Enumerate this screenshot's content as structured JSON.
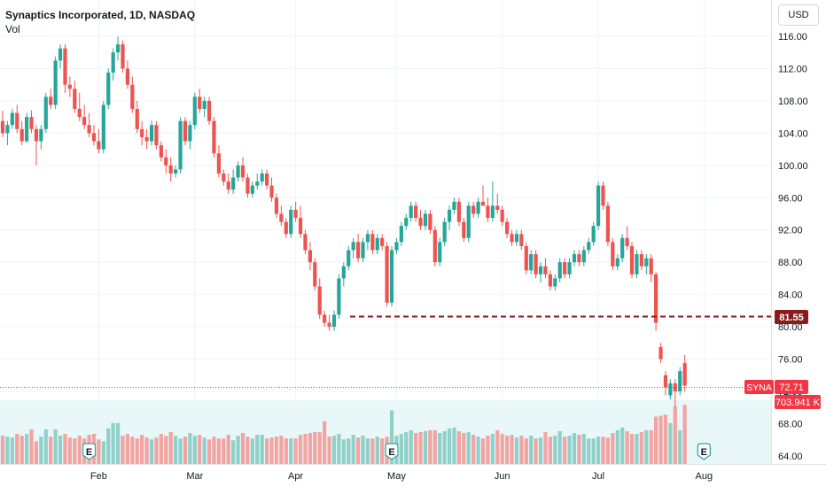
{
  "header": {
    "symbol_title": "Synaptics Incorporated, 1D, NASDAQ",
    "volume_label": "Vol",
    "currency_button": "USD"
  },
  "colors": {
    "up": "#26a69a",
    "down": "#ef5350",
    "up_volume": "#8fd0c9",
    "down_volume": "#f3a3a2",
    "level_line": "#8b1a1a",
    "last_price": "#f23645",
    "volume_band": "#e8f7f7"
  },
  "chart_data": {
    "type": "candlestick",
    "title": "Synaptics Incorporated, 1D, NASDAQ",
    "y_axis": {
      "ticks": [
        "116.00",
        "112.00",
        "108.00",
        "104.00",
        "100.00",
        "96.00",
        "92.00",
        "88.00",
        "84.00",
        "80.00",
        "76.00",
        "72.00",
        "68.00",
        "64.00"
      ],
      "range": [
        63.0,
        120.5
      ],
      "position": "right"
    },
    "x_axis": {
      "ticks": [
        {
          "label": "Feb",
          "day": 20
        },
        {
          "label": "Mar",
          "day": 40
        },
        {
          "label": "Apr",
          "day": 61
        },
        {
          "label": "May",
          "day": 82
        },
        {
          "label": "Jun",
          "day": 104
        },
        {
          "label": "Jul",
          "day": 124
        },
        {
          "label": "Aug",
          "day": 146
        }
      ]
    },
    "candles": [
      [
        105.5,
        106.8,
        103.5,
        104.0
      ],
      [
        104.0,
        105.5,
        102.5,
        105.0
      ],
      [
        105.0,
        107.0,
        104.5,
        106.5
      ],
      [
        106.5,
        107.5,
        104.0,
        104.5
      ],
      [
        104.5,
        105.5,
        102.5,
        103.0
      ],
      [
        103.0,
        106.5,
        102.8,
        106.0
      ],
      [
        106.0,
        106.8,
        104.0,
        104.5
      ],
      [
        104.5,
        105.0,
        100.0,
        103.0
      ],
      [
        103.0,
        105.0,
        102.0,
        104.5
      ],
      [
        104.5,
        109.0,
        104.0,
        108.5
      ],
      [
        108.5,
        109.5,
        107.0,
        107.5
      ],
      [
        107.5,
        113.5,
        107.0,
        113.0
      ],
      [
        113.0,
        115.0,
        112.0,
        114.5
      ],
      [
        114.5,
        115.0,
        109.0,
        110.0
      ],
      [
        110.0,
        111.0,
        108.5,
        109.5
      ],
      [
        109.5,
        110.5,
        106.5,
        107.0
      ],
      [
        107.0,
        109.0,
        105.5,
        106.0
      ],
      [
        106.0,
        107.5,
        104.5,
        105.0
      ],
      [
        105.0,
        106.5,
        103.5,
        104.0
      ],
      [
        104.0,
        105.0,
        102.5,
        103.0
      ],
      [
        103.0,
        104.5,
        101.5,
        102.0
      ],
      [
        102.0,
        108.0,
        101.5,
        107.5
      ],
      [
        107.5,
        112.0,
        107.0,
        111.5
      ],
      [
        111.5,
        114.5,
        110.5,
        114.0
      ],
      [
        114.0,
        116.0,
        113.0,
        115.0
      ],
      [
        115.0,
        115.5,
        111.5,
        112.0
      ],
      [
        112.0,
        113.0,
        109.5,
        110.0
      ],
      [
        110.0,
        111.0,
        106.5,
        107.0
      ],
      [
        107.0,
        108.0,
        104.0,
        104.5
      ],
      [
        104.5,
        105.5,
        102.5,
        103.5
      ],
      [
        103.5,
        104.5,
        102.0,
        103.0
      ],
      [
        103.0,
        105.5,
        102.5,
        105.0
      ],
      [
        105.0,
        105.5,
        102.0,
        102.5
      ],
      [
        102.5,
        103.0,
        100.5,
        101.0
      ],
      [
        101.0,
        102.0,
        99.0,
        100.0
      ],
      [
        100.0,
        101.0,
        98.0,
        99.0
      ],
      [
        99.0,
        100.0,
        98.5,
        99.5
      ],
      [
        99.5,
        106.0,
        99.0,
        105.5
      ],
      [
        105.5,
        106.0,
        102.5,
        103.0
      ],
      [
        103.0,
        105.5,
        102.0,
        105.0
      ],
      [
        105.0,
        109.0,
        104.5,
        108.5
      ],
      [
        108.5,
        109.5,
        106.5,
        107.0
      ],
      [
        107.0,
        108.5,
        106.0,
        108.0
      ],
      [
        108.0,
        108.5,
        105.0,
        105.5
      ],
      [
        105.5,
        106.0,
        101.0,
        101.5
      ],
      [
        101.5,
        102.5,
        98.5,
        99.0
      ],
      [
        99.0,
        99.5,
        97.5,
        98.0
      ],
      [
        98.0,
        99.0,
        96.5,
        97.0
      ],
      [
        97.0,
        99.5,
        96.5,
        98.5
      ],
      [
        98.5,
        100.5,
        98.0,
        100.0
      ],
      [
        100.0,
        101.0,
        98.0,
        98.5
      ],
      [
        98.5,
        99.0,
        96.0,
        96.5
      ],
      [
        96.5,
        98.0,
        96.0,
        97.5
      ],
      [
        97.5,
        99.0,
        97.0,
        98.0
      ],
      [
        98.0,
        99.5,
        97.5,
        99.0
      ],
      [
        99.0,
        99.5,
        97.0,
        97.5
      ],
      [
        97.5,
        98.5,
        95.5,
        96.0
      ],
      [
        96.0,
        96.5,
        93.5,
        94.0
      ],
      [
        94.0,
        95.0,
        92.5,
        93.0
      ],
      [
        93.0,
        93.5,
        91.0,
        91.5
      ],
      [
        91.5,
        95.0,
        91.0,
        94.5
      ],
      [
        94.5,
        95.5,
        93.0,
        93.5
      ],
      [
        93.5,
        95.0,
        91.0,
        91.5
      ],
      [
        91.5,
        92.0,
        89.0,
        89.5
      ],
      [
        89.5,
        90.5,
        87.0,
        88.0
      ],
      [
        88.0,
        88.5,
        84.5,
        85.0
      ],
      [
        85.0,
        86.0,
        81.0,
        81.5
      ],
      [
        81.5,
        82.0,
        80.0,
        80.5
      ],
      [
        80.5,
        81.5,
        79.5,
        80.0
      ],
      [
        80.0,
        82.0,
        79.5,
        81.5
      ],
      [
        81.5,
        86.5,
        81.0,
        86.0
      ],
      [
        86.0,
        88.0,
        85.0,
        87.5
      ],
      [
        87.5,
        90.0,
        87.0,
        89.5
      ],
      [
        89.5,
        91.0,
        88.5,
        90.5
      ],
      [
        90.5,
        91.5,
        88.0,
        88.5
      ],
      [
        88.5,
        91.0,
        88.0,
        90.5
      ],
      [
        90.5,
        92.0,
        89.5,
        91.5
      ],
      [
        91.5,
        92.0,
        89.0,
        89.5
      ],
      [
        89.5,
        91.5,
        89.0,
        91.0
      ],
      [
        91.0,
        91.5,
        89.5,
        90.0
      ],
      [
        90.0,
        90.5,
        82.5,
        83.0
      ],
      [
        83.0,
        90.0,
        82.5,
        89.5
      ],
      [
        89.5,
        91.0,
        89.0,
        90.5
      ],
      [
        90.5,
        93.0,
        90.0,
        92.5
      ],
      [
        92.5,
        94.0,
        92.0,
        93.5
      ],
      [
        93.5,
        95.5,
        93.0,
        95.0
      ],
      [
        95.0,
        95.5,
        93.0,
        93.5
      ],
      [
        93.5,
        94.5,
        92.0,
        92.5
      ],
      [
        92.5,
        94.5,
        92.0,
        94.0
      ],
      [
        94.0,
        94.5,
        91.5,
        92.0
      ],
      [
        92.0,
        92.5,
        87.5,
        88.0
      ],
      [
        88.0,
        91.0,
        87.5,
        90.5
      ],
      [
        90.5,
        93.5,
        90.0,
        93.0
      ],
      [
        93.0,
        95.0,
        92.0,
        94.5
      ],
      [
        94.5,
        96.0,
        94.0,
        95.5
      ],
      [
        95.5,
        96.0,
        92.5,
        93.0
      ],
      [
        93.0,
        93.5,
        90.5,
        91.0
      ],
      [
        91.0,
        95.5,
        90.5,
        95.0
      ],
      [
        95.0,
        95.5,
        93.5,
        94.0
      ],
      [
        94.0,
        96.0,
        93.5,
        95.5
      ],
      [
        95.5,
        97.5,
        95.0,
        95.0
      ],
      [
        95.0,
        96.0,
        93.0,
        93.5
      ],
      [
        93.5,
        98.0,
        93.0,
        95.0
      ],
      [
        95.0,
        96.5,
        94.0,
        94.5
      ],
      [
        94.5,
        95.0,
        92.5,
        93.0
      ],
      [
        93.0,
        93.5,
        91.0,
        91.5
      ],
      [
        91.5,
        92.0,
        90.0,
        90.5
      ],
      [
        90.5,
        92.0,
        90.0,
        91.5
      ],
      [
        91.5,
        92.0,
        89.5,
        90.0
      ],
      [
        90.0,
        90.5,
        86.5,
        87.0
      ],
      [
        87.0,
        89.5,
        86.5,
        89.0
      ],
      [
        89.0,
        89.5,
        86.0,
        86.5
      ],
      [
        86.5,
        88.0,
        85.5,
        87.5
      ],
      [
        87.5,
        88.5,
        86.0,
        86.5
      ],
      [
        86.5,
        87.0,
        84.5,
        85.0
      ],
      [
        85.0,
        86.5,
        84.5,
        86.0
      ],
      [
        86.0,
        88.5,
        85.5,
        88.0
      ],
      [
        88.0,
        88.5,
        86.0,
        86.5
      ],
      [
        86.5,
        88.5,
        86.0,
        88.0
      ],
      [
        88.0,
        89.5,
        87.5,
        89.0
      ],
      [
        89.0,
        89.5,
        87.5,
        88.0
      ],
      [
        88.0,
        90.0,
        87.5,
        89.5
      ],
      [
        89.5,
        91.0,
        89.0,
        90.5
      ],
      [
        90.5,
        93.0,
        90.0,
        92.5
      ],
      [
        92.5,
        98.0,
        92.0,
        97.5
      ],
      [
        97.5,
        98.0,
        94.5,
        95.0
      ],
      [
        95.0,
        95.5,
        90.0,
        90.5
      ],
      [
        90.5,
        91.0,
        87.0,
        87.5
      ],
      [
        87.5,
        89.0,
        87.0,
        88.5
      ],
      [
        88.5,
        91.5,
        88.0,
        91.0
      ],
      [
        91.0,
        92.5,
        89.5,
        90.0
      ],
      [
        90.0,
        90.5,
        86.0,
        86.5
      ],
      [
        86.5,
        89.5,
        86.0,
        89.0
      ],
      [
        89.0,
        89.5,
        87.0,
        87.5
      ],
      [
        87.5,
        89.0,
        86.5,
        88.5
      ],
      [
        88.5,
        89.0,
        85.5,
        86.5
      ],
      [
        86.5,
        86.8,
        79.5,
        80.5
      ],
      [
        77.5,
        78.0,
        75.5,
        76.0
      ],
      [
        74.0,
        74.5,
        71.5,
        72.5
      ],
      [
        71.5,
        73.5,
        71.0,
        73.0
      ],
      [
        73.0,
        73.5,
        70.0,
        72.0
      ],
      [
        72.0,
        75.0,
        71.5,
        74.5
      ],
      [
        75.5,
        76.5,
        72.0,
        72.71
      ]
    ],
    "volumes": [
      31,
      30,
      29,
      33,
      31,
      33,
      38,
      25,
      30,
      38,
      30,
      38,
      31,
      33,
      29,
      28,
      31,
      28,
      32,
      33,
      27,
      25,
      39,
      45,
      45,
      31,
      33,
      30,
      28,
      32,
      29,
      27,
      29,
      33,
      31,
      35,
      31,
      28,
      30,
      34,
      31,
      32,
      29,
      27,
      30,
      28,
      28,
      32,
      26,
      31,
      34,
      30,
      28,
      32,
      32,
      28,
      29,
      30,
      31,
      28,
      28,
      28,
      32,
      33,
      34,
      35,
      35,
      47,
      30,
      31,
      33,
      27,
      28,
      32,
      29,
      31,
      28,
      28,
      30,
      28,
      30,
      59,
      31,
      33,
      35,
      37,
      34,
      35,
      36,
      37,
      37,
      34,
      36,
      39,
      40,
      36,
      34,
      35,
      32,
      30,
      28,
      31,
      33,
      37,
      33,
      31,
      32,
      29,
      31,
      28,
      31,
      28,
      29,
      35,
      30,
      31,
      36,
      30,
      31,
      34,
      32,
      33,
      28,
      28,
      30,
      30,
      29,
      34,
      37,
      40,
      36,
      33,
      33,
      35,
      37,
      37,
      52,
      53,
      54,
      45,
      63,
      37,
      65
    ],
    "volume_label": "Vol",
    "price_level": {
      "value": "81.55",
      "style": "dashed"
    },
    "last_price": {
      "symbol": "SYNA",
      "value": "72.71",
      "volume": "703.941 K"
    },
    "event_markers": [
      {
        "label": "E",
        "day": 18
      },
      {
        "label": "E",
        "day": 81
      },
      {
        "label": "E",
        "day": 146
      }
    ]
  }
}
